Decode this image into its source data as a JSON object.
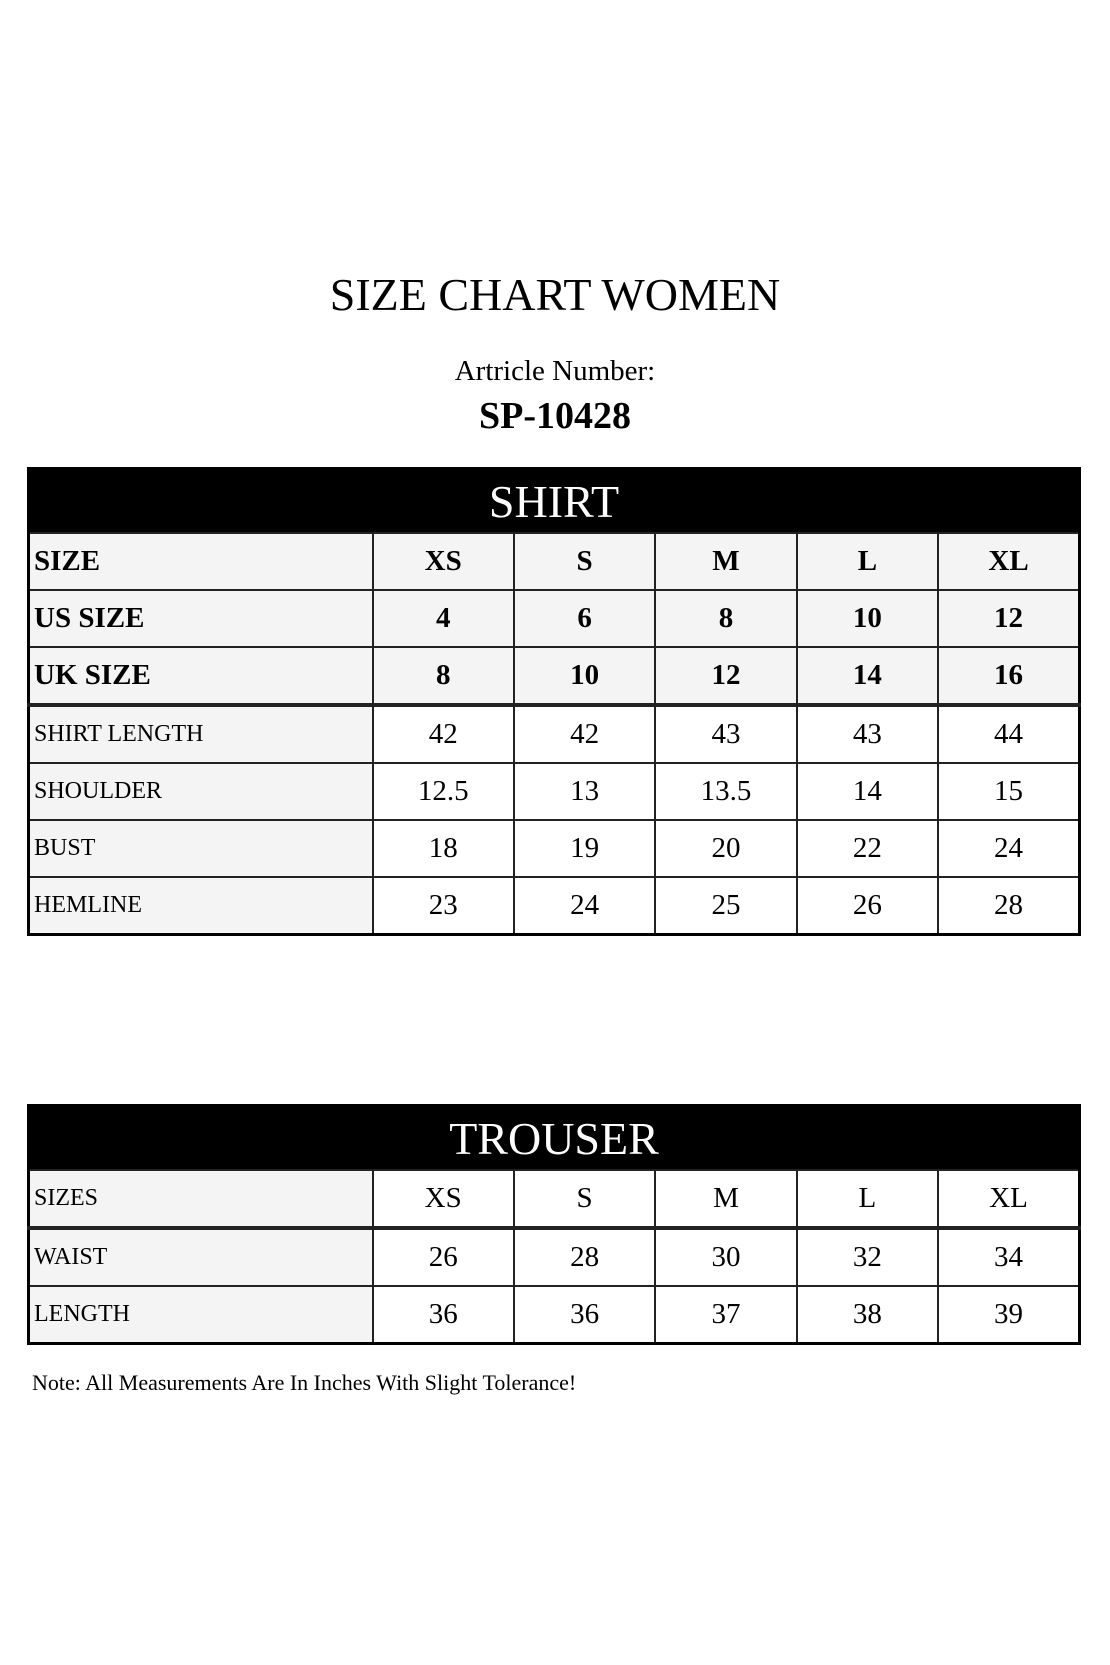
{
  "title": "SIZE CHART WOMEN",
  "article_label": "Artricle Number:",
  "article_number": "SP-10428",
  "shirt": {
    "title": "SHIRT",
    "header": [
      "SIZE",
      "XS",
      "S",
      "M",
      "L",
      "XL"
    ],
    "bold_rows": [
      [
        "US SIZE",
        "4",
        "6",
        "8",
        "10",
        "12"
      ],
      [
        "UK SIZE",
        "8",
        "10",
        "12",
        "14",
        "16"
      ]
    ],
    "rows": [
      [
        "SHIRT LENGTH",
        "42",
        "42",
        "43",
        "43",
        "44"
      ],
      [
        "SHOULDER",
        "12.5",
        "13",
        "13.5",
        "14",
        "15"
      ],
      [
        "BUST",
        "18",
        "19",
        "20",
        "22",
        "24"
      ],
      [
        "HEMLINE",
        "23",
        "24",
        "25",
        "26",
        "28"
      ]
    ]
  },
  "trouser": {
    "title": "TROUSER",
    "header": [
      "SIZES",
      "XS",
      "S",
      "M",
      "L",
      "XL"
    ],
    "rows": [
      [
        "WAIST",
        "26",
        "28",
        "30",
        "32",
        "34"
      ],
      [
        "LENGTH",
        "36",
        "36",
        "37",
        "38",
        "39"
      ]
    ]
  },
  "note": "Note: All Measurements Are In Inches With Slight Tolerance!"
}
